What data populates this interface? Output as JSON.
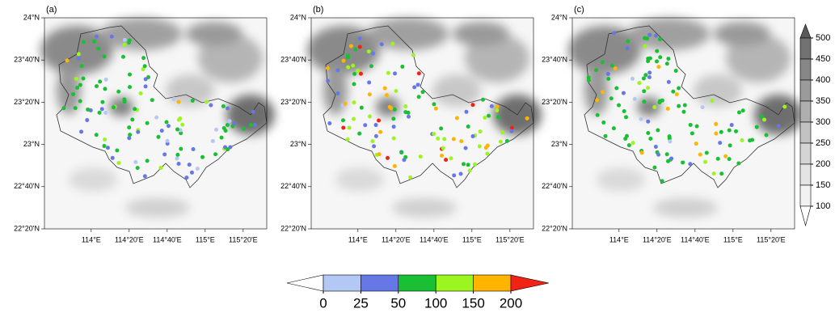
{
  "panels": [
    {
      "label": "(a)"
    },
    {
      "label": "(b)"
    },
    {
      "label": "(c)"
    }
  ],
  "lat_ticks": [
    {
      "value": 24,
      "label": "24°N"
    },
    {
      "value": 23.6667,
      "label": "23°40'N"
    },
    {
      "value": 23.3333,
      "label": "23°20'N"
    },
    {
      "value": 23,
      "label": "23°N"
    },
    {
      "value": 22.6667,
      "label": "22°40'N"
    },
    {
      "value": 22.3333,
      "label": "22°20'N"
    }
  ],
  "lon_ticks": [
    {
      "value": 114,
      "label": "114°E"
    },
    {
      "value": 114.3333,
      "label": "114°20'E"
    },
    {
      "value": 114.6667,
      "label": "114°40'E"
    },
    {
      "value": 115,
      "label": "115°E"
    },
    {
      "value": 115.3333,
      "label": "115°20'E"
    }
  ],
  "xlim": [
    113.59,
    115.54
  ],
  "ylim": [
    22.3333,
    24
  ],
  "station_colorbar": {
    "ticks": [
      0,
      25,
      50,
      100,
      150,
      200
    ],
    "colors": [
      "#ffffff",
      "#b4c8f5",
      "#6678e6",
      "#19c033",
      "#9cf51e",
      "#ffb400",
      "#f02314"
    ]
  },
  "terrain_colorbar": {
    "ticks": [
      100,
      150,
      200,
      250,
      300,
      350,
      400,
      450,
      500
    ],
    "colors": [
      "#ffffff",
      "#f2f2f2",
      "#e4e4e4",
      "#d4d4d4",
      "#c2c2c2",
      "#afafaf",
      "#9b9b9b",
      "#878787",
      "#727272",
      "#5a5a5a"
    ]
  }
}
